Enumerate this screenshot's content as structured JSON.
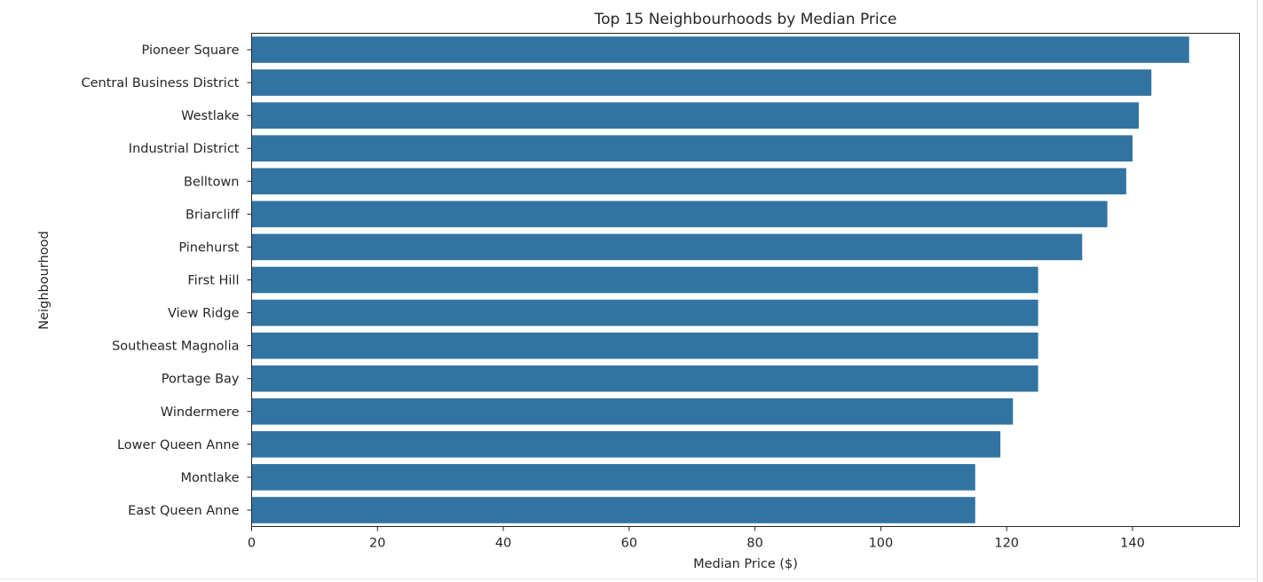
{
  "chart_data": {
    "type": "bar",
    "orientation": "horizontal",
    "title": "Top 15 Neighbourhoods by Median Price",
    "xlabel": "Median Price ($)",
    "ylabel": "Neighbourhood",
    "categories": [
      "Pioneer Square",
      "Central Business District",
      "Westlake",
      "Industrial District",
      "Belltown",
      "Briarcliff",
      "Pinehurst",
      "First Hill",
      "View Ridge",
      "Southeast Magnolia",
      "Portage Bay",
      "Windermere",
      "Lower Queen Anne",
      "Montlake",
      "East Queen Anne"
    ],
    "values": [
      149,
      143,
      141,
      140,
      139,
      136,
      132,
      125,
      125,
      125,
      125,
      121,
      119,
      115,
      115
    ],
    "xlim": [
      0,
      157
    ],
    "xticks": [
      0,
      20,
      40,
      60,
      80,
      100,
      120,
      140
    ],
    "grid": false,
    "bar_color": "#3274a1"
  }
}
